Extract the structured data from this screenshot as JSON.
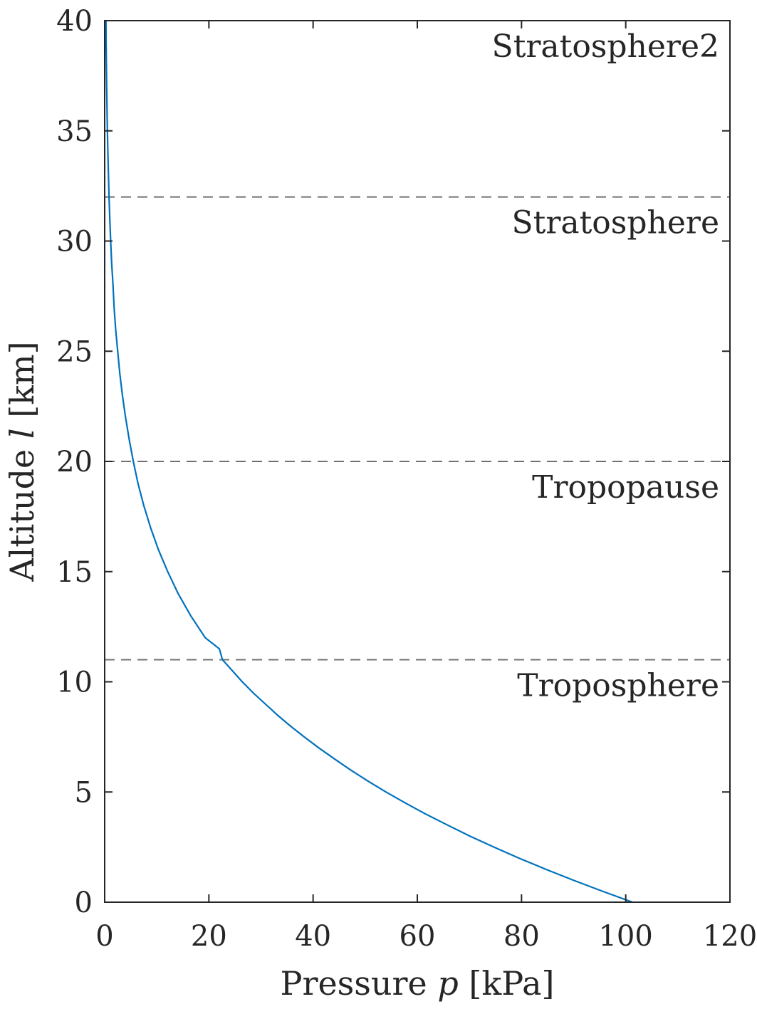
{
  "chart_data": {
    "type": "line",
    "xlabel": {
      "prefix": "Pressure ",
      "var": "p",
      "suffix": " [kPa]"
    },
    "ylabel": {
      "prefix": "Altitude ",
      "var": "l",
      "suffix": " [km]"
    },
    "xlim": [
      0,
      120
    ],
    "ylim": [
      0,
      40
    ],
    "xticks": [
      0,
      20,
      40,
      60,
      80,
      100,
      120
    ],
    "yticks": [
      0,
      5,
      10,
      15,
      20,
      25,
      30,
      35,
      40
    ],
    "grid": false,
    "line_color": "#0072BD",
    "ref_line_color": "#707070",
    "series": [
      {
        "x": [
          101.3,
          95.5,
          89.9,
          84.6,
          79.5,
          74.7,
          70.1,
          65.8,
          61.6,
          57.7,
          54.0,
          50.5,
          47.2,
          44.1,
          41.1,
          38.3,
          35.6,
          33.1,
          30.8,
          28.5,
          26.4,
          24.5,
          22.6,
          22.0,
          19.3,
          16.5,
          14.1,
          12.1,
          10.3,
          8.8,
          7.5,
          6.4,
          5.5,
          4.7,
          4.0,
          3.4,
          2.9,
          2.5,
          2.1,
          1.8,
          1.6,
          1.34,
          1.15,
          0.98,
          0.84,
          0.72,
          0.61,
          0.52,
          0.45,
          0.38,
          0.33,
          0.28,
          0.24,
          0.2
        ],
        "y": [
          0,
          0.5,
          1,
          1.5,
          2,
          2.5,
          3,
          3.5,
          4,
          4.5,
          5,
          5.5,
          6,
          6.5,
          7,
          7.5,
          8,
          8.5,
          9,
          9.5,
          10,
          10.5,
          11,
          11.5,
          12,
          13,
          14,
          15,
          16,
          17,
          18,
          19,
          20,
          21,
          22,
          23,
          24,
          25,
          26,
          27,
          28,
          29,
          30,
          31,
          32,
          33,
          34,
          35,
          36,
          37,
          38,
          39,
          40,
          41
        ]
      }
    ],
    "regions": [
      {
        "label": "Troposphere",
        "boundary": 11
      },
      {
        "label": "Tropopause",
        "boundary": 20
      },
      {
        "label": "Stratosphere",
        "boundary": 32
      },
      {
        "label": "Stratosphere2",
        "boundary": 40
      }
    ]
  }
}
